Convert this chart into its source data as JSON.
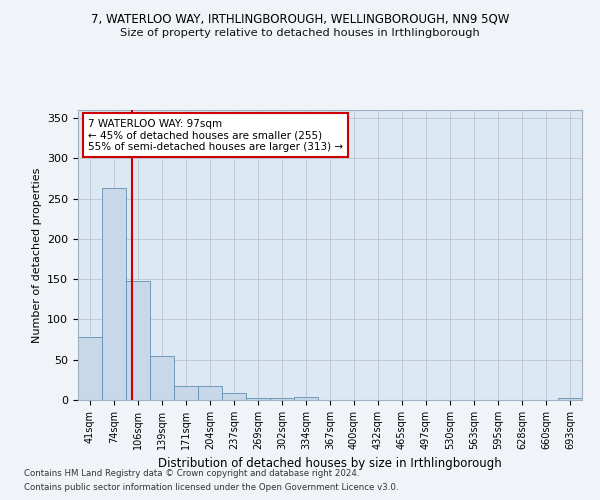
{
  "title": "7, WATERLOO WAY, IRTHLINGBOROUGH, WELLINGBOROUGH, NN9 5QW",
  "subtitle": "Size of property relative to detached houses in Irthlingborough",
  "xlabel": "Distribution of detached houses by size in Irthlingborough",
  "ylabel": "Number of detached properties",
  "footnote1": "Contains HM Land Registry data © Crown copyright and database right 2024.",
  "footnote2": "Contains public sector information licensed under the Open Government Licence v3.0.",
  "annotation_title": "7 WATERLOO WAY: 97sqm",
  "annotation_line1": "← 45% of detached houses are smaller (255)",
  "annotation_line2": "55% of semi-detached houses are larger (313) →",
  "bar_labels": [
    "41sqm",
    "74sqm",
    "106sqm",
    "139sqm",
    "171sqm",
    "204sqm",
    "237sqm",
    "269sqm",
    "302sqm",
    "334sqm",
    "367sqm",
    "400sqm",
    "432sqm",
    "465sqm",
    "497sqm",
    "530sqm",
    "563sqm",
    "595sqm",
    "628sqm",
    "660sqm",
    "693sqm"
  ],
  "bar_values": [
    78,
    263,
    148,
    55,
    18,
    18,
    9,
    3,
    3,
    4,
    0,
    0,
    0,
    0,
    0,
    0,
    0,
    0,
    0,
    0,
    3
  ],
  "bar_color": "#c8d8e8",
  "bar_edge_color": "#6090b0",
  "red_line_color": "#cc0000",
  "annotation_box_color": "#ffffff",
  "annotation_box_edge": "#cc0000",
  "grid_color": "#c0c8d8",
  "fig_bg_color": "#f0f4f8",
  "plot_bg_color": "#dce8f4",
  "ylim": [
    0,
    360
  ],
  "yticks": [
    0,
    50,
    100,
    150,
    200,
    250,
    300,
    350
  ],
  "red_line_x": 1.73
}
